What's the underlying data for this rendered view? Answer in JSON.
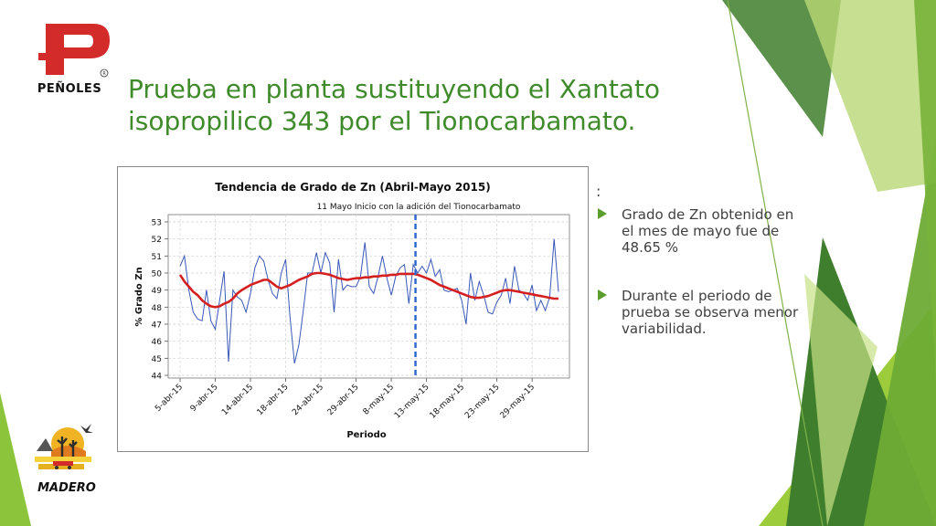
{
  "slide": {
    "title": "Prueba en planta sustituyendo el Xantato isopropilico 343 por el Tionocarbamato.",
    "logo_top_text": "PEÑOLES",
    "logo_bottom_text": "MADERO",
    "colon": ":",
    "bullets": [
      {
        "text": "Grado de Zn obtenido en el mes de mayo fue de 48.65 %"
      },
      {
        "text": "Durante el periodo de prueba se observa menor variabilidad."
      }
    ]
  },
  "colors": {
    "title": "#3f8a2a",
    "series_raw": "#3a58b8",
    "series_trend": "#d52020",
    "marker_line": "#2a66c9",
    "bullet_arrow": "#5c9e2e",
    "logo_red": "#d32a2a",
    "green_dark": "#3e7e2c",
    "green_light": "#9ccb3b"
  },
  "icons": {
    "bullet": "right-triangle-arrow-icon",
    "logo_top": "penoles-logo-icon",
    "logo_bottom": "madero-logo-icon"
  },
  "chart_data": {
    "type": "line",
    "title": "Tendencia de Grado de Zn (Abril-Mayo 2015)",
    "annotation": "11 Mayo Inicio con la adición del Tionocarbamato",
    "xlabel": "Periodo",
    "ylabel": "% Grado Zn",
    "ylim": [
      44,
      53
    ],
    "yticks": [
      44,
      45,
      46,
      47,
      48,
      49,
      50,
      51,
      52,
      53
    ],
    "x_tick_labels": [
      "5-abr-15",
      "9-abr-15",
      "14-abr-15",
      "18-abr-15",
      "24-abr-15",
      "29-abr-15",
      "8-may-15",
      "13-may-15",
      "18-may-15",
      "23-may-15",
      "29-may-15"
    ],
    "x_tick_indices": [
      0,
      8,
      16,
      24,
      32,
      40,
      48,
      56,
      64,
      72,
      80
    ],
    "grid": true,
    "marker_index": 53.5,
    "series": [
      {
        "values": [
          50.4,
          51.0,
          49.0,
          47.7,
          47.3,
          47.2,
          49.0,
          47.2,
          46.7,
          48.4,
          50.1,
          44.8,
          49.0,
          48.6,
          48.4,
          47.7,
          48.8,
          50.3,
          51.0,
          50.7,
          49.6,
          48.8,
          48.5,
          50.0,
          50.8,
          47.4,
          44.7,
          45.8,
          47.8,
          50.0,
          50.0,
          51.2,
          50.0,
          51.2,
          50.6,
          47.7,
          50.8,
          49.0,
          49.3,
          49.2,
          49.2,
          49.8,
          51.8,
          49.2,
          48.8,
          49.8,
          51.0,
          49.7,
          48.7,
          49.8,
          50.3,
          50.5,
          48.2,
          50.5,
          50.0,
          50.4,
          50.0,
          50.8,
          49.8,
          50.2,
          49.0,
          48.9,
          49.0,
          49.1,
          48.4,
          47.0,
          50.0,
          48.4,
          49.5,
          48.7,
          47.7,
          47.6,
          48.3,
          48.7,
          49.7,
          48.2,
          50.4,
          49.0,
          48.8,
          48.4,
          49.3,
          47.8,
          48.4,
          47.8,
          48.6,
          52.0,
          48.9
        ]
      },
      {
        "values": [
          49.9,
          49.5,
          49.2,
          48.9,
          48.7,
          48.4,
          48.2,
          48.05,
          48.0,
          48.05,
          48.2,
          48.3,
          48.5,
          48.8,
          49.0,
          49.15,
          49.3,
          49.4,
          49.5,
          49.6,
          49.6,
          49.4,
          49.2,
          49.1,
          49.2,
          49.3,
          49.45,
          49.6,
          49.7,
          49.8,
          49.95,
          50.0,
          50.0,
          49.95,
          49.9,
          49.8,
          49.7,
          49.65,
          49.6,
          49.65,
          49.7,
          49.7,
          49.75,
          49.75,
          49.8,
          49.8,
          49.85,
          49.85,
          49.9,
          49.9,
          49.95,
          49.95,
          49.95,
          49.95,
          49.9,
          49.8,
          49.7,
          49.6,
          49.45,
          49.3,
          49.2,
          49.1,
          49.0,
          48.9,
          48.8,
          48.7,
          48.6,
          48.55,
          48.55,
          48.6,
          48.65,
          48.75,
          48.85,
          48.95,
          49.0,
          49.0,
          48.95,
          48.9,
          48.85,
          48.8,
          48.75,
          48.7,
          48.65,
          48.6,
          48.55,
          48.5,
          48.5
        ]
      }
    ]
  }
}
